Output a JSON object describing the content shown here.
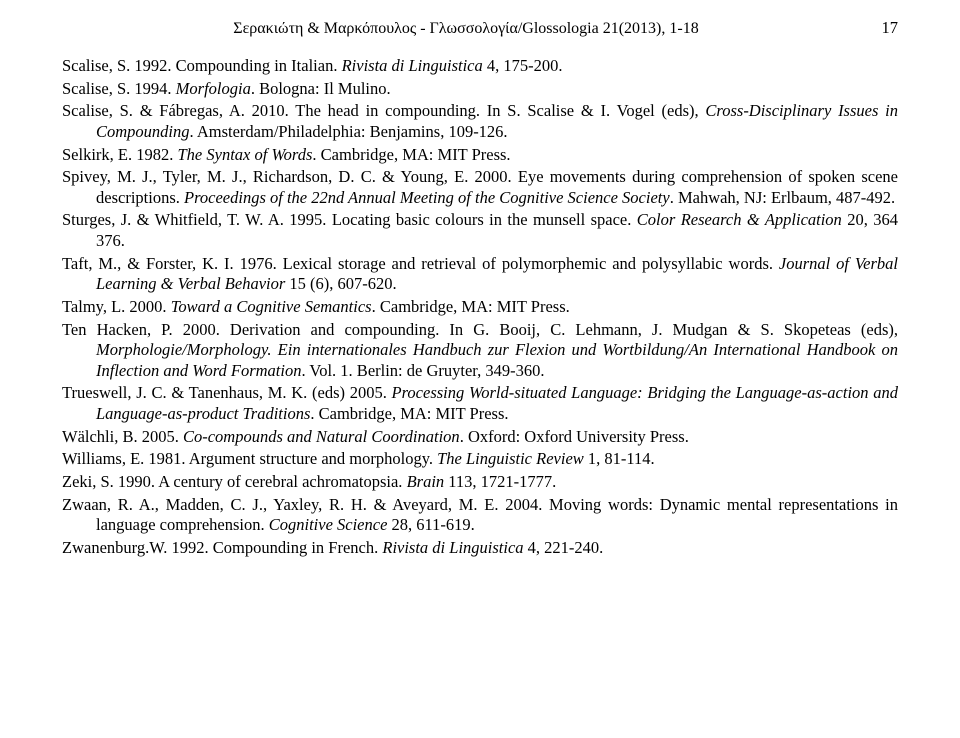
{
  "header": {
    "title": "Σερακιώτη & Μαρκόπουλος - Γλωσσολογία/Glossologia 21(2013), 1-18",
    "page_number": "17"
  },
  "references": {
    "entries": [
      {
        "html": "Scalise, S. 1992. Compounding in Italian. <i>Rivista di Linguistica</i> 4, 175-200."
      },
      {
        "html": "Scalise, S. 1994. <i>Morfologia</i>. Bologna: Il Mulino."
      },
      {
        "html": "Scalise, S. & Fábregas, A. 2010. The head in compounding. In S. Scalise & I. Vogel (eds), <i>Cross-Disciplinary Issues in Compounding</i>. Amsterdam/Philadelphia: Benjamins, 109-126."
      },
      {
        "html": "Selkirk, E. 1982. <i>The Syntax of Words</i>. Cambridge, MA: MIT Press."
      },
      {
        "html": "Spivey, M. J., Tyler, M. J., Richardson, D. C. & Young, E. 2000. Eye movements during comprehension of spoken scene descriptions. <i>Proceedings of the 22nd Annual Meeting of the Cognitive Science Society</i>. Mahwah, NJ: Erlbaum, 487-492."
      },
      {
        "html": "Sturges, J. & Whitfield, T. W. A. 1995. Locating basic colours in the munsell space. <i>Color Research & Application</i> 20, 364 376."
      },
      {
        "html": "Taft, M., & Forster, K. I. 1976. Lexical storage and retrieval of polymorphemic and polysyllabic words. <i>Journal of Verbal Learning & Verbal Behavior</i> 15 (6), 607-620."
      },
      {
        "html": "Talmy, L. 2000. <i>Toward a Cognitive Semantics</i>. Cambridge, MA: MIT Press."
      },
      {
        "html": "Ten Hacken, P. 2000. Derivation and compounding. In G. Booij, C. Lehmann, J. Mudgan & S. Skopeteas (eds), <i>Morphologie/Morphology. Ein internationales Handbuch zur Flexion und Wortbildung/An International Handbook on Inflection and Word Formation</i>. Vol. 1. Berlin: de Gruyter, 349-360."
      },
      {
        "html": "Trueswell, J. C. & Tanenhaus, M. K. (eds) 2005. <i>Processing World-situated Language: Bridging the Language-as-action and Language-as-product Traditions</i>. Cambridge, MA: MIT Press."
      },
      {
        "html": "Wälchli, B. 2005. <i>Co-compounds and Natural Coordination</i>. Oxford: Oxford University Press."
      },
      {
        "html": "Williams, E. 1981. Argument structure and morphology. <i>The Linguistic Review</i> 1, 81-114."
      },
      {
        "html": "Zeki, S. 1990. A century of cerebral achromatopsia. <i>Brain</i> 113, 1721-1777."
      },
      {
        "html": "Zwaan, R. A., Madden, C. J., Yaxley, R. H. & Aveyard, M. E. 2004. Moving words: Dynamic mental representations in language comprehension. <i>Cognitive Science</i> 28, 611-619."
      },
      {
        "html": "Zwanenburg.W. 1992. Compounding in French. <i>Rivista di Linguistica</i> 4, 221-240."
      }
    ]
  }
}
